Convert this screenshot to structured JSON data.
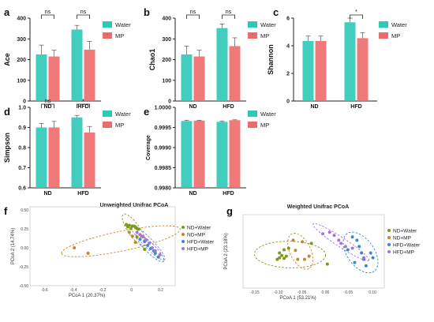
{
  "colors": {
    "water": "#2cc9b8",
    "mp": "#ee6b6b",
    "nd_water": "#7a9a1a",
    "nd_mp": "#c8842e",
    "hfd_water": "#3a86d8",
    "hfd_mp": "#a373e0"
  },
  "chart_data": [
    {
      "id": "a",
      "type": "bar",
      "panel_letter": "a",
      "ylabel": "Ace",
      "categories": [
        "ND",
        "HFD"
      ],
      "series": [
        {
          "name": "Water",
          "values": [
            225,
            345
          ],
          "errors": [
            45,
            20
          ]
        },
        {
          "name": "MP",
          "values": [
            215,
            248
          ],
          "errors": [
            30,
            40
          ]
        }
      ],
      "ylim": [
        0,
        400
      ],
      "yticks": [
        "0",
        "100",
        "200",
        "300",
        "400"
      ],
      "significance": [
        "ns",
        "ns"
      ],
      "legend": "top-right"
    },
    {
      "id": "b",
      "type": "bar",
      "panel_letter": "b",
      "ylabel": "Chao1",
      "categories": [
        "ND",
        "HFD"
      ],
      "series": [
        {
          "name": "Water",
          "values": [
            225,
            352
          ],
          "errors": [
            40,
            20
          ]
        },
        {
          "name": "MP",
          "values": [
            215,
            265
          ],
          "errors": [
            30,
            40
          ]
        }
      ],
      "ylim": [
        0,
        400
      ],
      "yticks": [
        "0",
        "100",
        "200",
        "300",
        "400"
      ],
      "significance": [
        "ns",
        "ns"
      ],
      "legend": "top-right"
    },
    {
      "id": "c",
      "type": "bar",
      "panel_letter": "c",
      "ylabel": "Shannon",
      "categories": [
        "ND",
        "HFD"
      ],
      "series": [
        {
          "name": "Water",
          "values": [
            4.35,
            5.7
          ],
          "errors": [
            0.35,
            0.3
          ]
        },
        {
          "name": "MP",
          "values": [
            4.35,
            4.55
          ],
          "errors": [
            0.35,
            0.4
          ]
        }
      ],
      "ylim": [
        0,
        6
      ],
      "yticks": [
        "0",
        "2",
        "4",
        "6"
      ],
      "significance": [
        "",
        "*"
      ],
      "legend": "top-right"
    },
    {
      "id": "d",
      "type": "bar",
      "panel_letter": "d",
      "ylabel": "Simpson",
      "categories": [
        "ND",
        "HFD"
      ],
      "series": [
        {
          "name": "Water",
          "values": [
            0.9,
            0.95
          ],
          "errors": [
            0.02,
            0.01
          ]
        },
        {
          "name": "MP",
          "values": [
            0.9,
            0.875
          ],
          "errors": [
            0.03,
            0.03
          ]
        }
      ],
      "ylim": [
        0.6,
        1.0
      ],
      "yticks": [
        "0.6",
        "0.7",
        "0.8",
        "0.9",
        "1.0"
      ],
      "significance": [
        "ns",
        "*"
      ],
      "legend": "top-right"
    },
    {
      "id": "e",
      "type": "bar",
      "panel_letter": "e",
      "ylabel": "Coverage",
      "categories": [
        "ND",
        "HFD"
      ],
      "series": [
        {
          "name": "Water",
          "values": [
            0.99966,
            0.99964
          ],
          "errors": [
            2e-05,
            2e-05
          ]
        },
        {
          "name": "MP",
          "values": [
            0.99967,
            0.99968
          ],
          "errors": [
            1e-05,
            1e-05
          ]
        }
      ],
      "ylim": [
        0.998,
        1.0
      ],
      "yticks": [
        "0.9980",
        "0.9985",
        "0.9990",
        "0.9995",
        "1.0000"
      ],
      "significance": [
        "",
        ""
      ],
      "legend": "top-right"
    },
    {
      "id": "f",
      "type": "scatter",
      "panel_letter": "f",
      "title": "Unweighted Unifrac PCoA",
      "xlabel": "PCoA 1 (20.37%)",
      "ylabel": "PCoA 2 (14.74%)",
      "xlim": [
        -0.65,
        0.3
      ],
      "ylim": [
        -0.52,
        0.5
      ],
      "xticks": [
        "-0.6",
        "-0.4",
        "-0.2",
        "0",
        "0.2"
      ],
      "yticks": [
        "0.50",
        "0.25",
        "0.00",
        "-0.25",
        "-0.50"
      ],
      "legend": "right",
      "series": [
        {
          "name": "ND+Water",
          "points": [
            [
              -0.02,
              0.27
            ],
            [
              0.0,
              0.26
            ],
            [
              0.02,
              0.25
            ],
            [
              0.03,
              0.25
            ],
            [
              -0.01,
              0.24
            ],
            [
              0.04,
              0.24
            ],
            [
              0.05,
              0.22
            ],
            [
              0.01,
              0.22
            ],
            [
              0.06,
              0.21
            ],
            [
              0.05,
              0.11
            ],
            [
              0.1,
              -0.05
            ]
          ]
        },
        {
          "name": "ND+MP",
          "points": [
            [
              -0.36,
              -0.03
            ],
            [
              -0.27,
              -0.1
            ],
            [
              0.0,
              0.17
            ],
            [
              0.02,
              0.12
            ],
            [
              0.08,
              0.12
            ],
            [
              0.1,
              0.06
            ],
            [
              0.04,
              0.04
            ]
          ]
        },
        {
          "name": "HFD+Water",
          "points": [
            [
              0.07,
              0.08
            ],
            [
              0.1,
              0.05
            ],
            [
              0.12,
              0.0
            ],
            [
              0.14,
              -0.04
            ],
            [
              0.16,
              -0.07
            ],
            [
              0.17,
              -0.1
            ],
            [
              0.19,
              -0.15
            ]
          ]
        },
        {
          "name": "HFD+MP",
          "points": [
            [
              0.05,
              0.17
            ],
            [
              0.07,
              0.14
            ],
            [
              0.09,
              0.11
            ],
            [
              0.11,
              0.07
            ],
            [
              0.13,
              0.03
            ],
            [
              0.15,
              -0.03
            ],
            [
              0.17,
              -0.07
            ],
            [
              0.2,
              -0.12
            ]
          ]
        }
      ]
    },
    {
      "id": "g",
      "type": "scatter",
      "panel_letter": "g",
      "title": "Weighted Unifrac PCoA",
      "xlabel": "PCoA 1 (53.21%)",
      "ylabel": "PCoA 2 (23.18%)",
      "xlim": [
        -0.18,
        0.13
      ],
      "ylim": [
        -0.13,
        0.1
      ],
      "xticks": [
        "-0.15",
        "-0.10",
        "-0.05",
        "0.00",
        "0.05",
        "0.10"
      ],
      "yticks": [],
      "legend": "right",
      "series": [
        {
          "name": "ND+Water",
          "points": [
            [
              -0.1,
              -0.02
            ],
            [
              -0.095,
              -0.028
            ],
            [
              -0.1,
              -0.035
            ],
            [
              -0.09,
              -0.037
            ],
            [
              -0.105,
              -0.04
            ],
            [
              -0.085,
              -0.03
            ],
            [
              -0.09,
              -0.01
            ],
            [
              -0.08,
              -0.005
            ],
            [
              0.005,
              -0.055
            ],
            [
              -0.03,
              0.01
            ]
          ]
        },
        {
          "name": "ND+MP",
          "points": [
            [
              -0.07,
              0.02
            ],
            [
              -0.065,
              -0.012
            ],
            [
              -0.06,
              -0.04
            ],
            [
              -0.05,
              0.015
            ],
            [
              -0.045,
              -0.04
            ],
            [
              -0.035,
              -0.03
            ]
          ]
        },
        {
          "name": "HFD+Water",
          "points": [
            [
              0.06,
              0.03
            ],
            [
              0.07,
              0.02
            ],
            [
              0.075,
              0.0
            ],
            [
              0.08,
              -0.02
            ],
            [
              0.085,
              -0.04
            ],
            [
              0.09,
              -0.06
            ],
            [
              0.1,
              -0.02
            ],
            [
              0.105,
              -0.035
            ],
            [
              0.05,
              -0.01
            ],
            [
              0.065,
              -0.05
            ]
          ]
        },
        {
          "name": "HFD+MP",
          "points": [
            [
              -0.005,
              0.04
            ],
            [
              0.01,
              0.045
            ],
            [
              0.02,
              0.035
            ],
            [
              0.035,
              0.01
            ],
            [
              0.045,
              0.0
            ],
            [
              0.06,
              -0.005
            ],
            [
              0.085,
              -0.035
            ],
            [
              0.03,
              0.02
            ]
          ]
        }
      ]
    }
  ]
}
